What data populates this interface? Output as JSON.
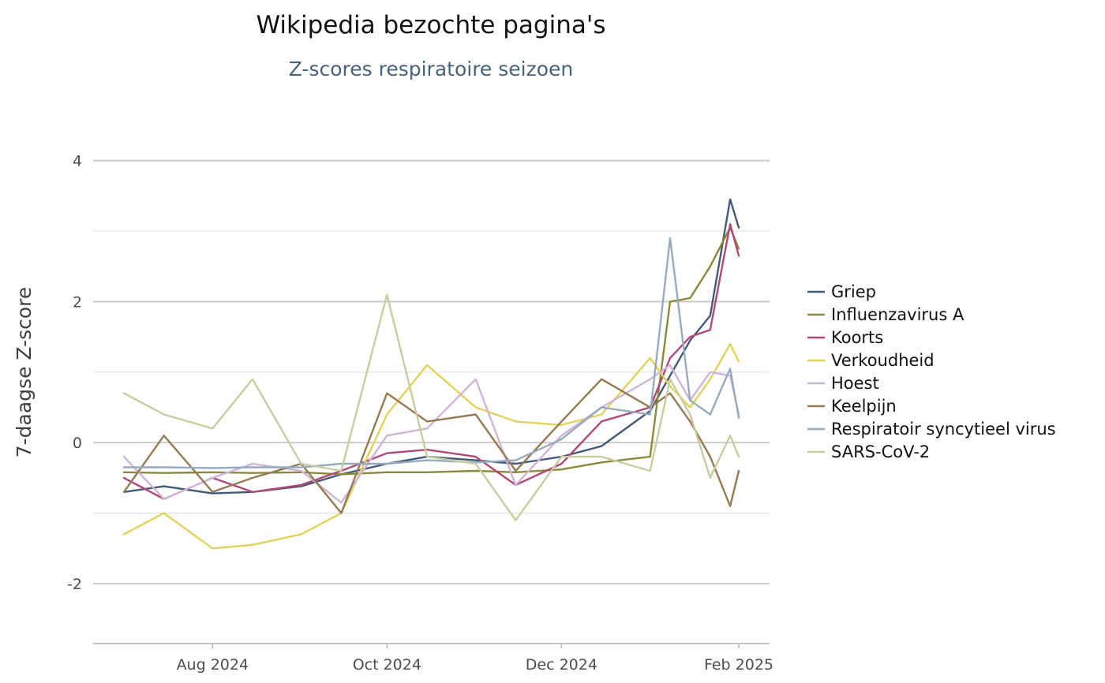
{
  "chart_data": {
    "type": "line",
    "title": "Wikipedia bezochte pagina's",
    "subtitle": "Z-scores respiratoire seizoen",
    "xlabel": "",
    "ylabel": "7-daagse Z-score",
    "x_ticks": [
      "Aug 2024",
      "Oct 2024",
      "Dec 2024",
      "Feb 2025"
    ],
    "x_tick_dates": [
      "2024-08-01",
      "2024-10-01",
      "2024-12-01",
      "2025-02-01"
    ],
    "xlim": [
      "2024-07-01",
      "2025-02-01"
    ],
    "y_ticks": [
      "4",
      "2",
      "0",
      "-2"
    ],
    "y_tick_values": [
      4,
      2,
      0,
      -2
    ],
    "ylim": [
      -2.85,
      4.6
    ],
    "grid": true,
    "legend_position": "right",
    "x": [
      "2024-07-01",
      "2024-07-15",
      "2024-08-01",
      "2024-08-15",
      "2024-09-01",
      "2024-09-15",
      "2024-10-01",
      "2024-10-15",
      "2024-11-01",
      "2024-11-15",
      "2024-12-01",
      "2024-12-15",
      "2025-01-01",
      "2025-01-08",
      "2025-01-15",
      "2025-01-22",
      "2025-01-29",
      "2025-02-01"
    ],
    "series": [
      {
        "name": "Griep",
        "color": "#435a78",
        "values": [
          -0.7,
          -0.62,
          -0.72,
          -0.7,
          -0.62,
          -0.45,
          -0.3,
          -0.2,
          -0.25,
          -0.3,
          -0.2,
          -0.05,
          0.45,
          0.95,
          1.45,
          1.8,
          3.45,
          3.05
        ]
      },
      {
        "name": "Influenzavirus A",
        "color": "#8c8a3a",
        "values": [
          -0.42,
          -0.43,
          -0.42,
          -0.43,
          -0.42,
          -0.45,
          -0.42,
          -0.42,
          -0.4,
          -0.42,
          -0.38,
          -0.28,
          -0.2,
          2.0,
          2.05,
          2.5,
          3.05,
          2.75
        ]
      },
      {
        "name": "Koorts",
        "color": "#b0497a",
        "values": [
          -0.5,
          -0.8,
          -0.5,
          -0.7,
          -0.6,
          -0.4,
          -0.15,
          -0.1,
          -0.2,
          -0.6,
          -0.3,
          0.3,
          0.5,
          1.2,
          1.5,
          1.6,
          3.1,
          2.65
        ]
      },
      {
        "name": "Verkoudheid",
        "color": "#e3d25a",
        "values": [
          -1.3,
          -1.0,
          -1.5,
          -1.45,
          -1.3,
          -1.0,
          0.4,
          1.1,
          0.5,
          0.3,
          0.25,
          0.4,
          1.2,
          0.8,
          0.5,
          0.9,
          1.4,
          1.15
        ]
      },
      {
        "name": "Hoest",
        "color": "#cfb4d6",
        "values": [
          -0.2,
          -0.8,
          -0.5,
          -0.3,
          -0.4,
          -0.85,
          0.1,
          0.2,
          0.9,
          -0.6,
          0.1,
          0.5,
          0.9,
          1.1,
          0.6,
          1.0,
          0.95,
          0.4
        ]
      },
      {
        "name": "Keelpijn",
        "color": "#957b54",
        "values": [
          -0.7,
          0.1,
          -0.7,
          -0.5,
          -0.3,
          -1.0,
          0.7,
          0.3,
          0.4,
          -0.4,
          0.3,
          0.9,
          0.5,
          0.7,
          0.3,
          -0.2,
          -0.9,
          -0.4
        ]
      },
      {
        "name": "Respiratoir syncytieel virus",
        "color": "#97abbe",
        "values": [
          -0.35,
          -0.35,
          -0.36,
          -0.35,
          -0.35,
          -0.3,
          -0.3,
          -0.25,
          -0.28,
          -0.25,
          0.05,
          0.5,
          0.4,
          2.9,
          0.6,
          0.4,
          1.05,
          0.35
        ]
      },
      {
        "name": "SARS-CoV-2",
        "color": "#c8cca0",
        "values": [
          0.7,
          0.4,
          0.2,
          0.9,
          -0.3,
          -0.4,
          2.1,
          -0.2,
          -0.3,
          -1.1,
          -0.2,
          -0.2,
          -0.4,
          0.9,
          0.4,
          -0.5,
          0.1,
          -0.2
        ]
      }
    ]
  }
}
